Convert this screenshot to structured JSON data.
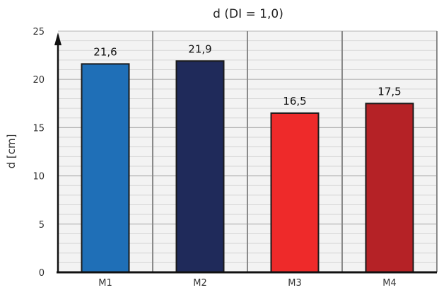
{
  "chart_data": {
    "type": "bar",
    "title": "d (DI = 1,0)",
    "ylabel": "d [cm]",
    "xlabel": "",
    "categories": [
      "M1",
      "M2",
      "M3",
      "M4"
    ],
    "values": [
      21.6,
      21.9,
      16.5,
      17.5
    ],
    "value_labels": [
      "21,6",
      "21,9",
      "16,5",
      "17,5"
    ],
    "bar_colors": [
      "#1f6fb7",
      "#1f2a5a",
      "#ee2a2a",
      "#b52226"
    ],
    "ylim": [
      0,
      25
    ],
    "yticks": [
      0,
      5,
      10,
      15,
      20,
      25
    ],
    "ytick_labels": [
      "0",
      "5",
      "10",
      "15",
      "20",
      "25"
    ],
    "grid": true
  }
}
